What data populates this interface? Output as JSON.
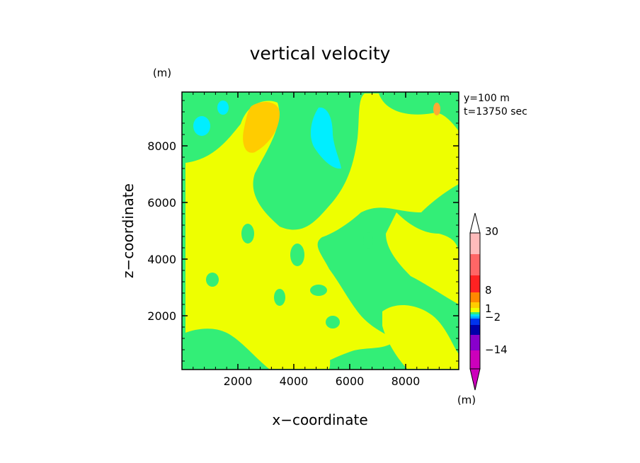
{
  "chart_data": {
    "type": "heatmap",
    "title": "vertical velocity",
    "xlabel": "x−coordinate",
    "ylabel": "z−coordinate",
    "unit_top": "(m)",
    "unit_bottom": "(m)",
    "info": [
      "y=100  m",
      "t=13750  sec"
    ],
    "xlim": [
      0,
      9900
    ],
    "ylim": [
      100,
      9900
    ],
    "xticks": [
      2000,
      4000,
      6000,
      8000
    ],
    "yticks": [
      2000,
      4000,
      6000,
      8000
    ],
    "colors": {
      "background_green": "#33ee77",
      "yellow": "#eeff00",
      "cyan": "#00eeff",
      "orange": "#ffcc00",
      "light_orange": "#ffaa33"
    },
    "colorbar": {
      "labels": [
        {
          "text": "30",
          "value": 30
        },
        {
          "text": "8",
          "value": 8
        },
        {
          "text": "1",
          "value": 1
        },
        {
          "text": "−2",
          "value": -2
        },
        {
          "text": "−14",
          "value": -14
        }
      ],
      "segments": [
        {
          "color": "#cc00bb"
        },
        {
          "color": "#8800cc"
        },
        {
          "color": "#0000aa"
        },
        {
          "color": "#0033ee"
        },
        {
          "color": "#00aaff"
        },
        {
          "color": "#00ddff"
        },
        {
          "color": "#33ee77"
        },
        {
          "color": "#eeff00"
        },
        {
          "color": "#ffcc00"
        },
        {
          "color": "#ff8800"
        },
        {
          "color": "#ff2222"
        },
        {
          "color": "#ff6666"
        },
        {
          "color": "#ffbbbb"
        }
      ]
    }
  }
}
